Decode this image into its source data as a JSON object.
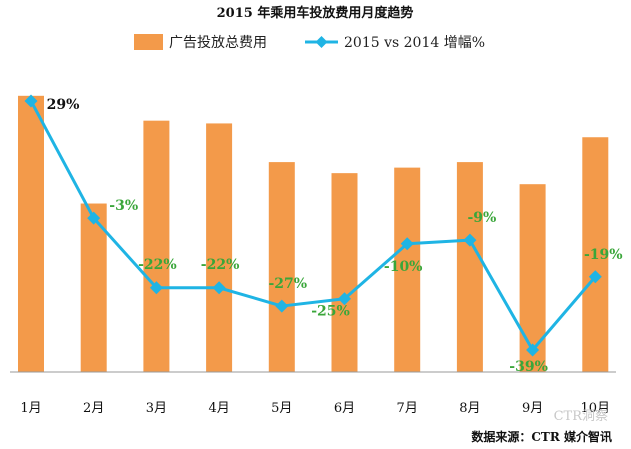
{
  "chart_data": {
    "type": "bar",
    "title": "2015 年乘用车投放费用月度趋势",
    "categories": [
      "1月",
      "2月",
      "3月",
      "4月",
      "5月",
      "6月",
      "7月",
      "8月",
      "9月",
      "10月"
    ],
    "series": [
      {
        "name": "广告投放总费用",
        "type": "bar",
        "color": "#f39a4a",
        "values": [
          100,
          61,
          91,
          90,
          76,
          72,
          74,
          76,
          68,
          85
        ]
      },
      {
        "name": "2015 vs 2014 增幅%",
        "type": "line",
        "color": "#1fb4e4",
        "values": [
          29,
          -3,
          -22,
          -22,
          -27,
          -25,
          -10,
          -9,
          -39,
          -19
        ],
        "labels": [
          "29%",
          "-3%",
          "-22%",
          "-22%",
          "-27%",
          "-25%",
          "-10%",
          "-9%",
          "-39%",
          "-19%"
        ]
      }
    ],
    "ylim_bar": [
      0,
      105
    ],
    "ylim_line": [
      -45,
      38
    ],
    "grid": false,
    "legend_position": "top"
  },
  "label_colors": {
    "positive": "#111111",
    "negative": "#3aa63a"
  },
  "source_text": "数据来源：CTR 媒介智讯",
  "watermark_text": "CTR洞察"
}
